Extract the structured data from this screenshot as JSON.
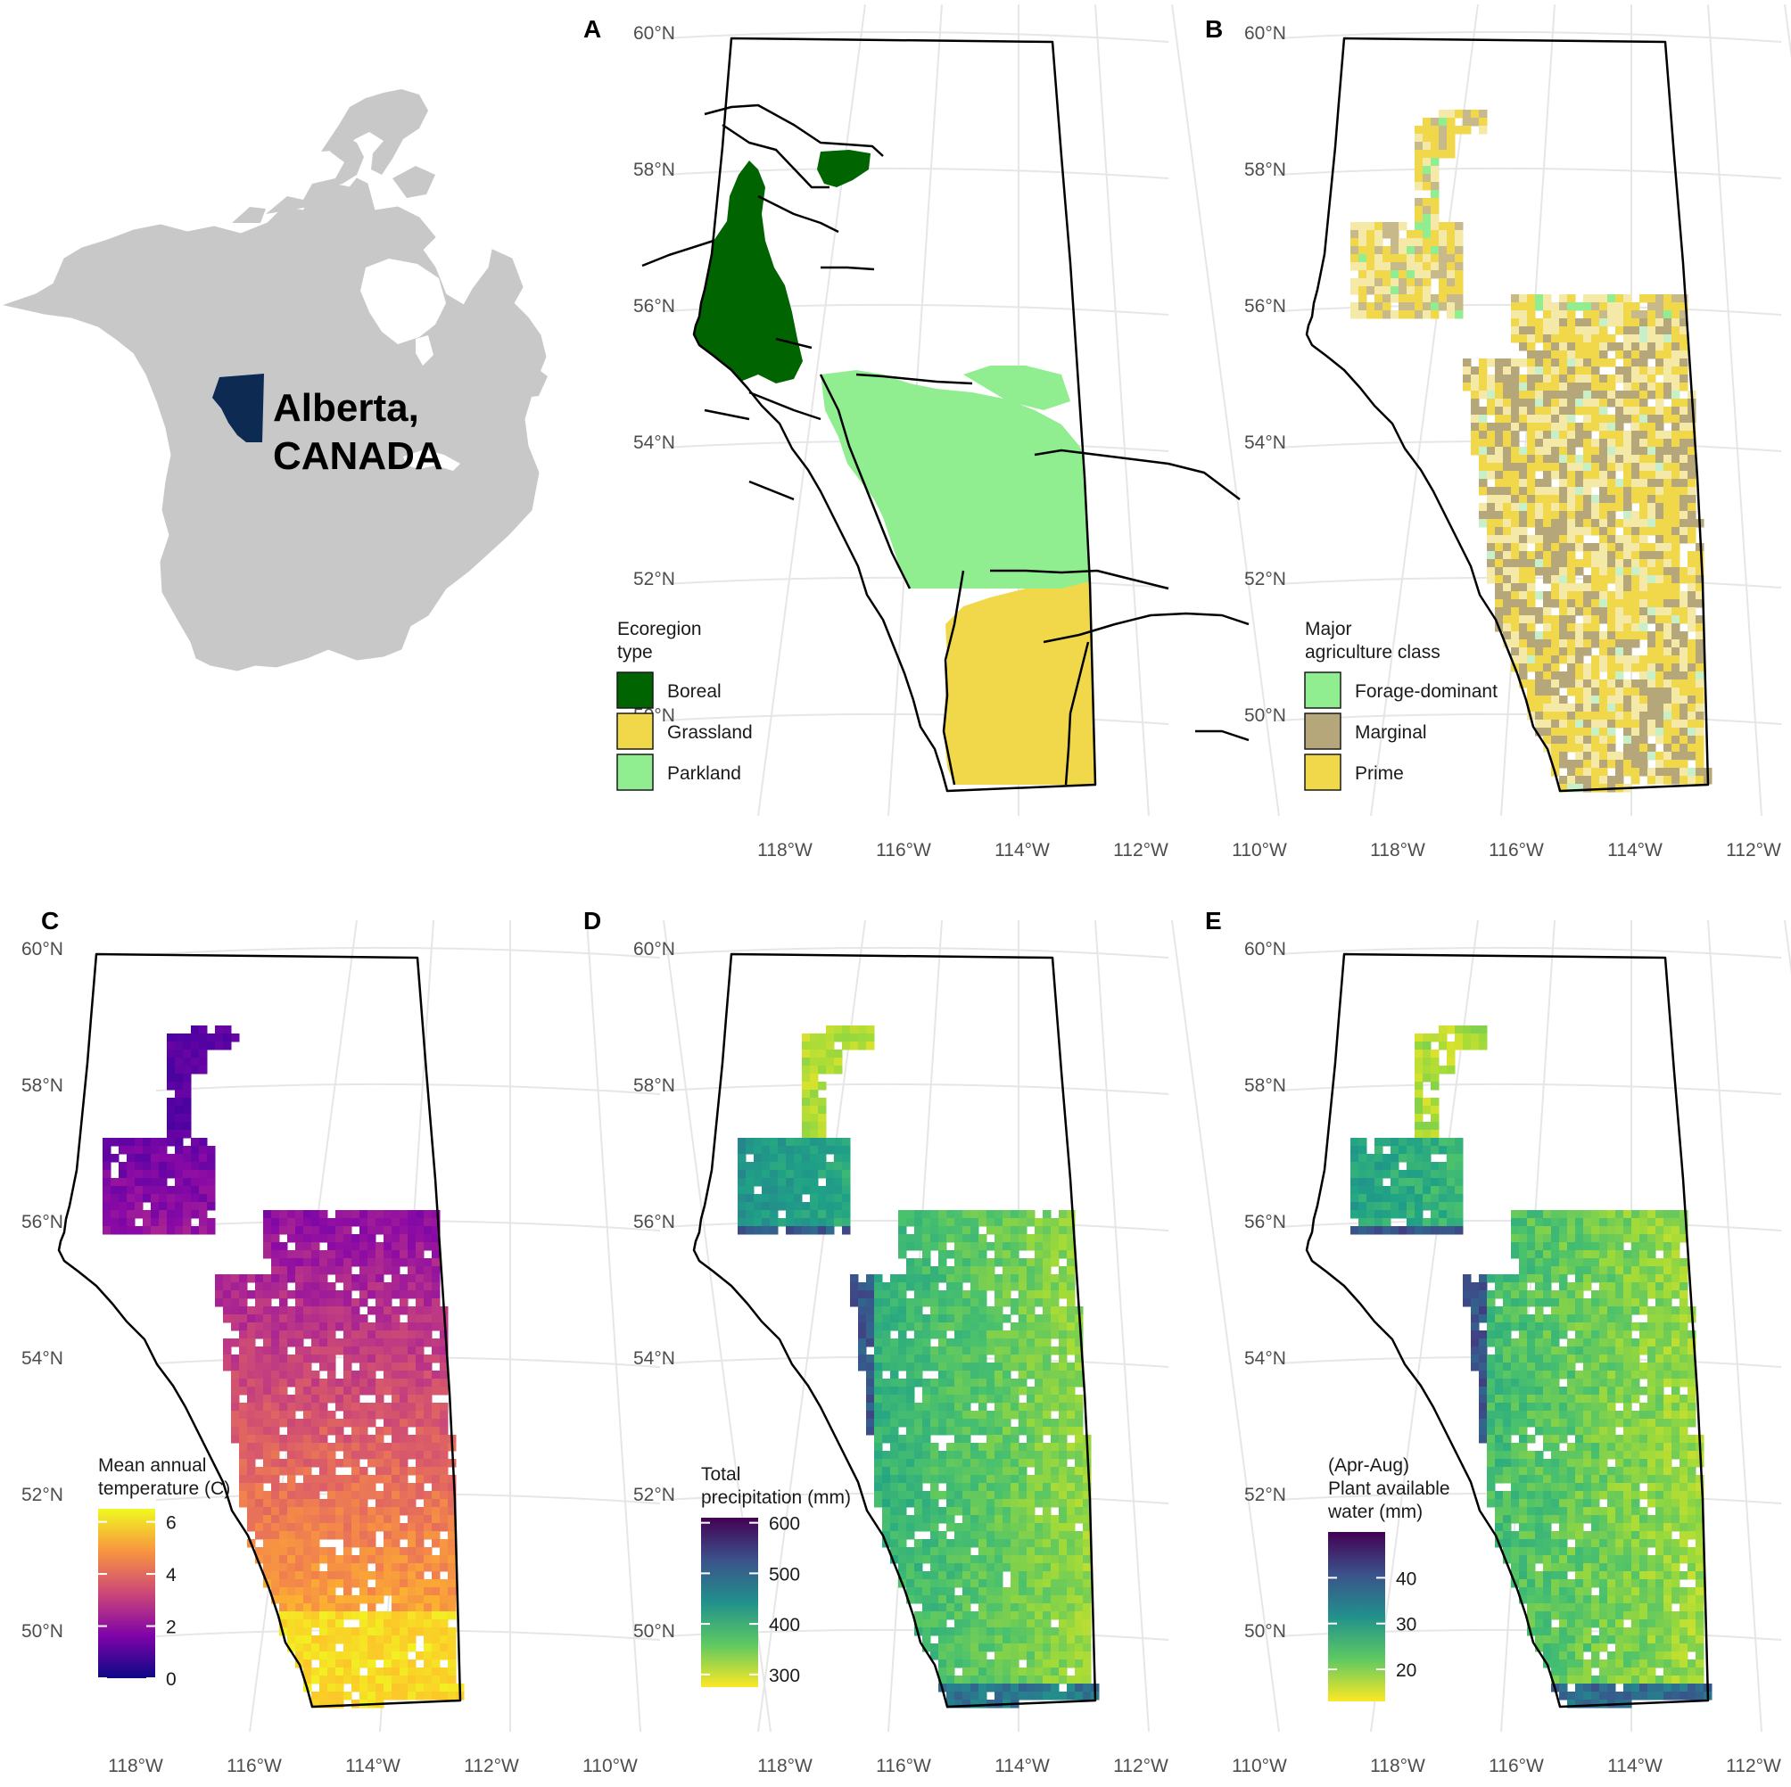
{
  "inset": {
    "label_line1": "Alberta,",
    "label_line2": "CANADA",
    "land_color": "#c8c8c8",
    "highlight_color": "#0d2a52"
  },
  "lat_ticks": [
    "60°N",
    "58°N",
    "56°N",
    "54°N",
    "52°N",
    "50°N"
  ],
  "lon_ticks": [
    "118°W",
    "116°W",
    "114°W",
    "112°W",
    "110°W"
  ],
  "panels": [
    {
      "id": "A",
      "letter": "A",
      "legend": {
        "type": "categorical",
        "title_lines": [
          "Ecoregion",
          "type"
        ],
        "items": [
          {
            "label": "Boreal",
            "color": "#006400"
          },
          {
            "label": "Grassland",
            "color": "#f0d84a"
          },
          {
            "label": "Parkland",
            "color": "#90ee90"
          }
        ]
      }
    },
    {
      "id": "B",
      "letter": "B",
      "legend": {
        "type": "categorical",
        "title_lines": [
          "Major",
          "agriculture class"
        ],
        "items": [
          {
            "label": "Forage-dominant",
            "color": "#90ee90"
          },
          {
            "label": "Marginal",
            "color": "#b5a77a"
          },
          {
            "label": "Prime",
            "color": "#f0d84a"
          }
        ]
      }
    },
    {
      "id": "C",
      "letter": "C",
      "legend": {
        "type": "continuous",
        "title_lines": [
          "Mean annual",
          "temperature (C)"
        ],
        "palette": "plasma",
        "ticks": [
          "0",
          "2",
          "4",
          "6"
        ],
        "tick_values": [
          0,
          2,
          4,
          6
        ],
        "range": [
          0,
          6.5
        ],
        "reverse": false
      }
    },
    {
      "id": "D",
      "letter": "D",
      "legend": {
        "type": "continuous",
        "title_lines": [
          "Total",
          "precipitation (mm)"
        ],
        "palette": "viridis",
        "ticks": [
          "300",
          "400",
          "500",
          "600"
        ],
        "tick_values": [
          300,
          400,
          500,
          600
        ],
        "range": [
          275,
          610
        ],
        "reverse": true
      }
    },
    {
      "id": "E",
      "letter": "E",
      "legend": {
        "type": "continuous",
        "title_lines": [
          "(Apr-Aug)",
          "Plant available",
          "water (mm)"
        ],
        "palette": "viridis",
        "ticks": [
          "20",
          "30",
          "40"
        ],
        "tick_values": [
          20,
          30,
          40
        ],
        "range": [
          13,
          50
        ],
        "reverse": true
      }
    }
  ]
}
